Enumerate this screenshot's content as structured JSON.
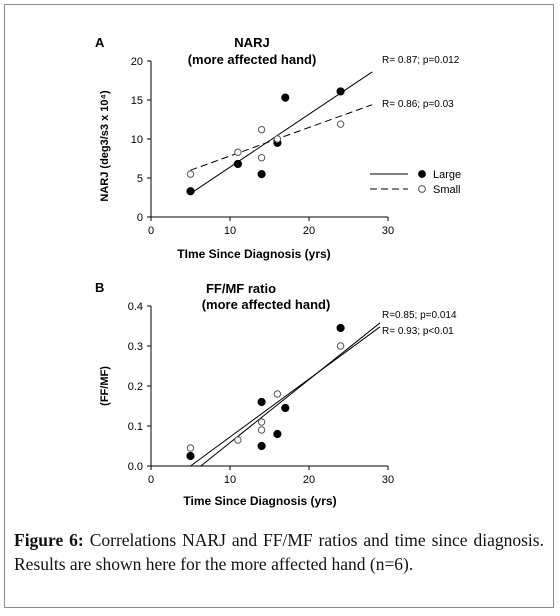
{
  "chart_data": [
    {
      "type": "scatter",
      "panel_label": "A",
      "title": "NARJ",
      "subtitle": "(more affected hand)",
      "xlabel": "TIme Since Diagnosis (yrs)",
      "ylabel": "NARJ (deg3/s3 x 10⁴)",
      "xlim": [
        0,
        30
      ],
      "ylim": [
        0,
        20
      ],
      "xticks": [
        "0",
        "10",
        "20",
        "30"
      ],
      "yticks": [
        "0",
        "5",
        "10",
        "15",
        "20"
      ],
      "series": [
        {
          "name": "Large",
          "marker": "filled",
          "points": [
            [
              5,
              3.3
            ],
            [
              11,
              6.8
            ],
            [
              14,
              5.5
            ],
            [
              16,
              9.5
            ],
            [
              17,
              15.3
            ],
            [
              24,
              16.1
            ]
          ],
          "fit": {
            "x": [
              5,
              28
            ],
            "y": [
              3.0,
              18.6
            ],
            "style": "solid"
          },
          "annotation": "R= 0.87;  p=0.012"
        },
        {
          "name": "Small",
          "marker": "open",
          "points": [
            [
              5,
              5.5
            ],
            [
              11,
              8.3
            ],
            [
              14,
              11.2
            ],
            [
              14,
              7.6
            ],
            [
              16,
              10.0
            ],
            [
              24,
              11.9
            ]
          ],
          "fit": {
            "x": [
              5,
              28
            ],
            "y": [
              6.0,
              14.4
            ],
            "style": "dashed"
          },
          "annotation": "R= 0.86;  p=0.03"
        }
      ],
      "legend": {
        "position": "right",
        "entries": [
          "Large",
          "Small"
        ]
      }
    },
    {
      "type": "scatter",
      "panel_label": "B",
      "title": "FF/MF ratio",
      "subtitle": "(more affected hand)",
      "xlabel": "Time Since Diagnosis (yrs)",
      "ylabel": "(FF/MF)",
      "xlim": [
        0,
        30
      ],
      "ylim": [
        0,
        0.4
      ],
      "xticks": [
        "0",
        "10",
        "20",
        "30"
      ],
      "yticks": [
        "0.0",
        "0.1",
        "0.2",
        "0.3",
        "0.4"
      ],
      "series": [
        {
          "name": "Large",
          "marker": "filled",
          "points": [
            [
              5,
              0.025
            ],
            [
              14,
              0.05
            ],
            [
              14,
              0.16
            ],
            [
              16,
              0.08
            ],
            [
              17,
              0.145
            ],
            [
              24,
              0.345
            ]
          ],
          "fit": {
            "x": [
              6.3,
              29
            ],
            "y": [
              0.0,
              0.358
            ],
            "style": "solid"
          },
          "annotation": "R=0.85;  p=0.014"
        },
        {
          "name": "Small",
          "marker": "open",
          "points": [
            [
              5,
              0.045
            ],
            [
              11,
              0.065
            ],
            [
              14,
              0.11
            ],
            [
              14,
              0.09
            ],
            [
              16,
              0.18
            ],
            [
              24,
              0.3
            ]
          ],
          "fit": {
            "x": [
              5,
              29
            ],
            "y": [
              0.0,
              0.348
            ],
            "style": "solid"
          },
          "annotation": "R= 0.93;  p<0.01"
        }
      ]
    }
  ],
  "caption": {
    "label": "Figure 6:",
    "text": " Correlations NARJ and FF/MF ratios and time since diagnosis. Results are shown here for the more affected hand (n=6)."
  }
}
